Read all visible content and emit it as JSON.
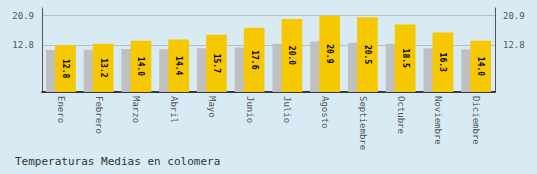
{
  "chart_data": {
    "type": "bar",
    "title": "Temperaturas Medias en colomera",
    "categories": [
      "Enero",
      "Febrero",
      "Marzo",
      "Abril",
      "Mayo",
      "Junio",
      "Julio",
      "Agosto",
      "Septiembre",
      "Octubre",
      "Noviembre",
      "Diciembre"
    ],
    "series": [
      {
        "color": "#C0C0C0",
        "values": [
          11.5,
          11.6,
          11.8,
          11.7,
          12.0,
          12.2,
          13.2,
          13.8,
          13.5,
          13.2,
          12.0,
          11.7
        ]
      },
      {
        "color": "#F5C800",
        "values": [
          12.8,
          13.2,
          14.0,
          14.4,
          15.7,
          17.6,
          20.0,
          20.9,
          20.5,
          18.5,
          16.3,
          14.0
        ],
        "value_labels": [
          "12.8",
          "13.2",
          "14.0",
          "14.4",
          "15.7",
          "17.6",
          "20.0",
          "20.9",
          "20.5",
          "18.5",
          "16.3",
          "14.0"
        ]
      }
    ],
    "ylim": [
      0,
      23.0
    ],
    "yticks": [
      12.8,
      20.9
    ],
    "grid": true,
    "data_labels": true
  }
}
